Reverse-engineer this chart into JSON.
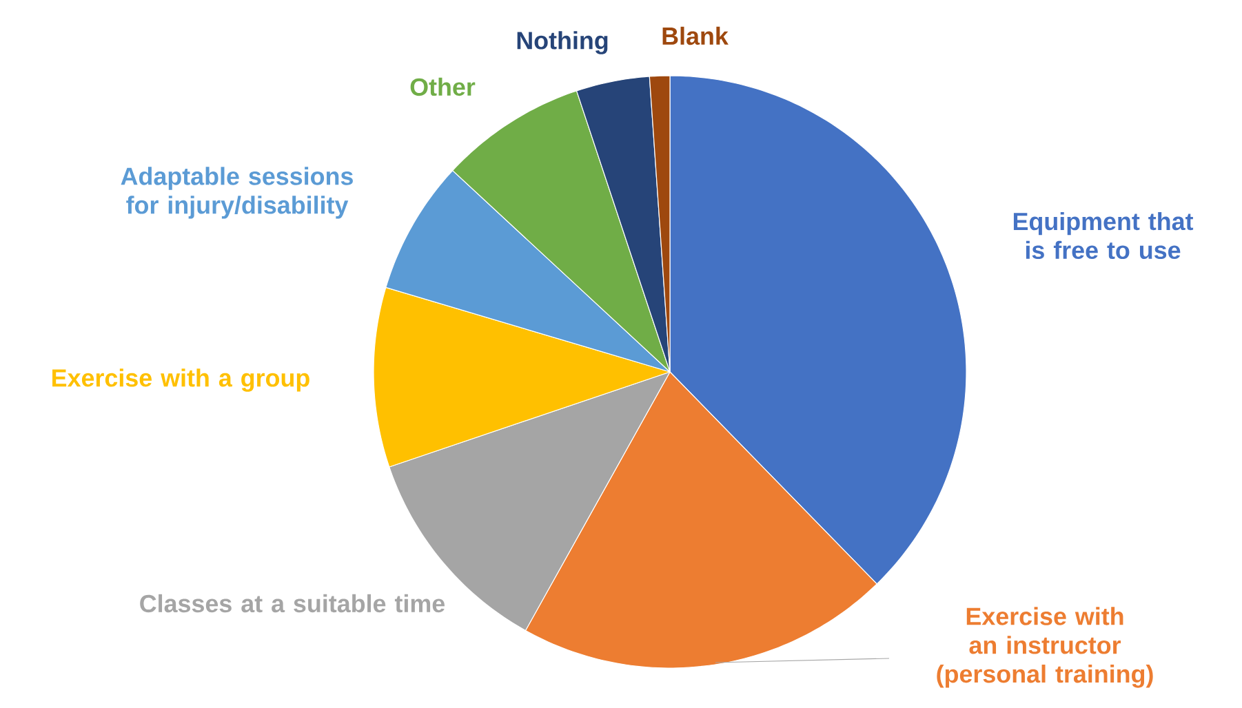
{
  "chart_data": {
    "type": "pie",
    "categories": [
      "Equipment that is free to use",
      "Exercise with an instructor (personal training)",
      "Classes at a suitable time",
      "Exercise with a group",
      "Adaptable sessions for injury/disability",
      "Other",
      "Nothing",
      "Blank"
    ],
    "values": [
      37.7,
      20.4,
      11.7,
      9.8,
      7.3,
      8.0,
      4.0,
      1.1
    ],
    "colors": [
      "#4472c4",
      "#ed7d31",
      "#a5a5a5",
      "#ffc000",
      "#5b9bd5",
      "#70ad47",
      "#264478",
      "#9e480e"
    ]
  }
}
